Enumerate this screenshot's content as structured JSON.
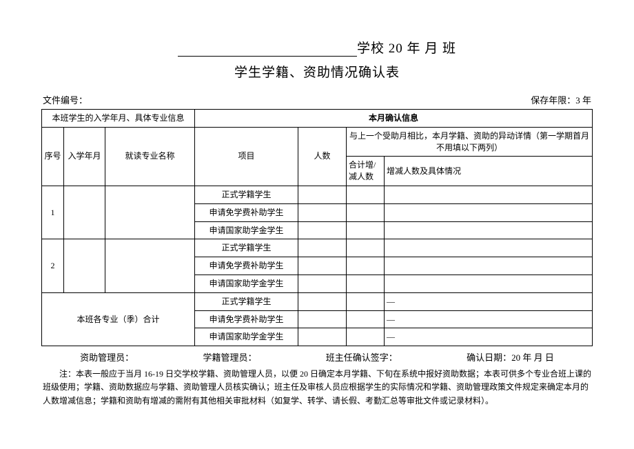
{
  "title": {
    "suffix": "学校 20 年 月 班",
    "line2": "学生学籍、资助情况确认表"
  },
  "meta": {
    "file_no_label": "文件编号：",
    "retention_label": "保存年限：3 年"
  },
  "table": {
    "header_left": "本班学生的入学年月、具体专业信息",
    "header_right": "本月确认信息",
    "col_seq": "序号",
    "col_year": "入学年月",
    "col_major": "就读专业名称",
    "col_item": "项目",
    "col_count": "人数",
    "col_variation": "与上一个受助月相比，本月学籍、资助的异动详情（第一学期首月不用填以下两列）",
    "col_change": "合计增/减人数",
    "col_detail": "增减人数及具体情况",
    "item_a": "正式学籍学生",
    "item_b": "申请免学费补助学生",
    "item_c": "申请国家助学金学生",
    "seq1": "1",
    "seq2": "2",
    "total_label": "本班各专业（季）合计",
    "dash": "—"
  },
  "sign": {
    "aid_mgr": "资助管理员：",
    "reg_mgr": "学籍管理员：",
    "teacher": "班主任确认签字：",
    "date": "确认日期：20 年 月 日"
  },
  "note": "注：本表一般应于当月 16-19 日交学校学籍、资助管理人员，以便 20 日确定本月学籍、下旬在系统中报好资助数据；本表可供多个专业合班上课的班级使用；学籍、资助数据应与学籍、资助管理人员核实确认；班主任及审核人员应根据学生的实际情况和学籍、资助管理政策文件规定来确定本月的人数增减信息；学籍和资助有增减的需附有其他相关审批材料（如复学、转学、请长假、考勤汇总等审批文件或记录材料）。"
}
